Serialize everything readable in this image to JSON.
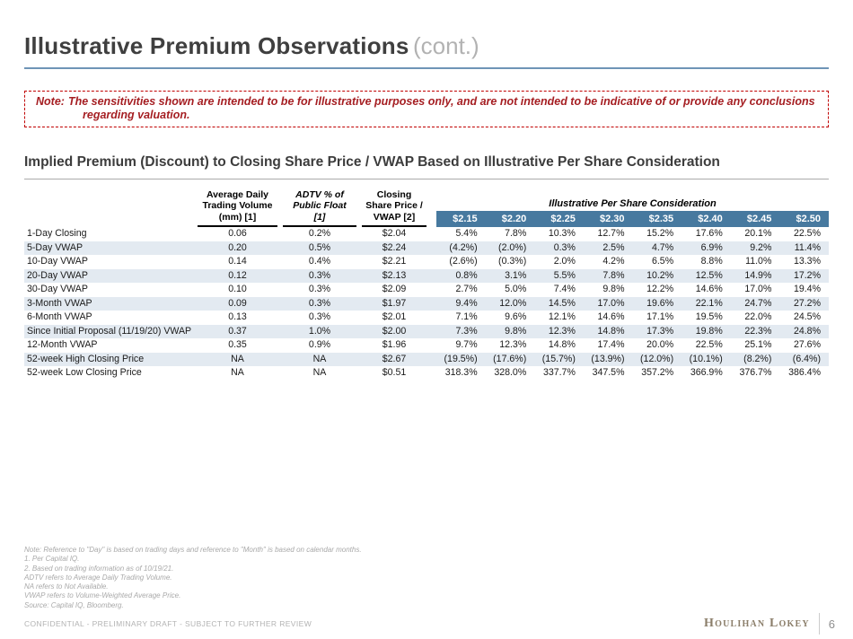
{
  "header": {
    "title": "Illustrative Premium Observations",
    "cont": "(cont.)"
  },
  "note": {
    "label": "Note:",
    "body": "The sensitivities shown are intended to be for illustrative purposes only, and are not intended to be indicative of or provide any conclusions regarding valuation."
  },
  "section": {
    "heading": "Implied Premium (Discount) to Closing Share Price / VWAP Based on Illustrative Per Share Consideration"
  },
  "table": {
    "col_headers": [
      {
        "lines": [
          "Average Daily",
          "Trading Volume",
          "(mm) [1]"
        ]
      },
      {
        "lines": [
          "ADTV % of",
          "Public Float",
          "[1]"
        ]
      },
      {
        "lines": [
          "Closing",
          "Share Price /",
          "VWAP [2]"
        ]
      }
    ],
    "group_header": "Illustrative Per Share Consideration",
    "price_headers": [
      "$2.15",
      "$2.20",
      "$2.25",
      "$2.30",
      "$2.35",
      "$2.40",
      "$2.45",
      "$2.50"
    ],
    "rows": [
      {
        "label": "1-Day Closing",
        "adtv": "0.06",
        "adtv_pct": "0.2%",
        "price": "$2.04",
        "values": [
          "5.4%",
          "7.8%",
          "10.3%",
          "12.7%",
          "15.2%",
          "17.6%",
          "20.1%",
          "22.5%"
        ]
      },
      {
        "label": "5-Day VWAP",
        "adtv": "0.20",
        "adtv_pct": "0.5%",
        "price": "$2.24",
        "values": [
          "(4.2%)",
          "(2.0%)",
          "0.3%",
          "2.5%",
          "4.7%",
          "6.9%",
          "9.2%",
          "11.4%"
        ]
      },
      {
        "label": "10-Day VWAP",
        "adtv": "0.14",
        "adtv_pct": "0.4%",
        "price": "$2.21",
        "values": [
          "(2.6%)",
          "(0.3%)",
          "2.0%",
          "4.2%",
          "6.5%",
          "8.8%",
          "11.0%",
          "13.3%"
        ]
      },
      {
        "label": "20-Day VWAP",
        "adtv": "0.12",
        "adtv_pct": "0.3%",
        "price": "$2.13",
        "values": [
          "0.8%",
          "3.1%",
          "5.5%",
          "7.8%",
          "10.2%",
          "12.5%",
          "14.9%",
          "17.2%"
        ]
      },
      {
        "label": "30-Day VWAP",
        "adtv": "0.10",
        "adtv_pct": "0.3%",
        "price": "$2.09",
        "values": [
          "2.7%",
          "5.0%",
          "7.4%",
          "9.8%",
          "12.2%",
          "14.6%",
          "17.0%",
          "19.4%"
        ]
      },
      {
        "label": "3-Month VWAP",
        "adtv": "0.09",
        "adtv_pct": "0.3%",
        "price": "$1.97",
        "values": [
          "9.4%",
          "12.0%",
          "14.5%",
          "17.0%",
          "19.6%",
          "22.1%",
          "24.7%",
          "27.2%"
        ]
      },
      {
        "label": "6-Month VWAP",
        "adtv": "0.13",
        "adtv_pct": "0.3%",
        "price": "$2.01",
        "values": [
          "7.1%",
          "9.6%",
          "12.1%",
          "14.6%",
          "17.1%",
          "19.5%",
          "22.0%",
          "24.5%"
        ]
      },
      {
        "label": "Since Initial Proposal (11/19/20) VWAP",
        "adtv": "0.37",
        "adtv_pct": "1.0%",
        "price": "$2.00",
        "values": [
          "7.3%",
          "9.8%",
          "12.3%",
          "14.8%",
          "17.3%",
          "19.8%",
          "22.3%",
          "24.8%"
        ]
      },
      {
        "label": "12-Month VWAP",
        "adtv": "0.35",
        "adtv_pct": "0.9%",
        "price": "$1.96",
        "values": [
          "9.7%",
          "12.3%",
          "14.8%",
          "17.4%",
          "20.0%",
          "22.5%",
          "25.1%",
          "27.6%"
        ]
      },
      {
        "label": "52-week High Closing Price",
        "adtv": "NA",
        "adtv_pct": "NA",
        "price": "$2.67",
        "values": [
          "(19.5%)",
          "(17.6%)",
          "(15.7%)",
          "(13.9%)",
          "(12.0%)",
          "(10.1%)",
          "(8.2%)",
          "(6.4%)"
        ]
      },
      {
        "label": "52-week Low Closing Price",
        "adtv": "NA",
        "adtv_pct": "NA",
        "price": "$0.51",
        "values": [
          "318.3%",
          "328.0%",
          "337.7%",
          "347.5%",
          "357.2%",
          "366.9%",
          "376.7%",
          "386.4%"
        ]
      }
    ]
  },
  "footnotes": [
    "Note: Reference to \"Day\" is based on trading days and reference to \"Month\" is based on calendar months.",
    "1. Per Capital IQ.",
    "2. Based on trading information as of 10/19/21.",
    "ADTV refers to Average Daily Trading Volume.",
    "NA refers to Not Available.",
    "VWAP refers to Volume-Weighted Average Price.",
    "Source: Capital IQ, Bloomberg."
  ],
  "footer": {
    "confidential": "CONFIDENTIAL - PRELIMINARY DRAFT - SUBJECT TO FURTHER REVIEW",
    "logo": "Houlihan Lokey",
    "page": "6"
  },
  "colors": {
    "band_blue": "#47799f",
    "row_shade": "#e3eaf1",
    "note_red": "#a51e22",
    "title_rule_blue": "#6f94b6",
    "logo_tan": "#8b7e6a"
  }
}
